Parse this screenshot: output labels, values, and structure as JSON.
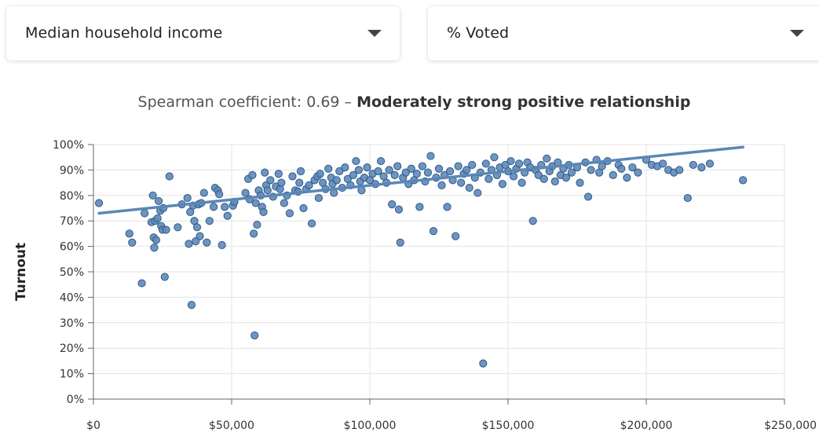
{
  "controls": {
    "x_select": {
      "value": "Median household income"
    },
    "y_select": {
      "value": "% Voted"
    }
  },
  "subtitle": {
    "prefix": "Spearman coefficient: 0.69 – ",
    "strength": "Moderately strong positive relationship"
  },
  "colors": {
    "point_fill": "#5f8ab8",
    "point_stroke": "#2c5a8c",
    "trend_line": "#5a87b5",
    "grid": "#e3e3e3",
    "axis": "#666666"
  },
  "chart_data": {
    "type": "scatter",
    "title": "Spearman coefficient: 0.69 – Moderately strong positive relationship",
    "xlabel": "Median household income",
    "ylabel": "Turnout",
    "xlim": [
      0,
      250000
    ],
    "ylim": [
      0,
      100
    ],
    "x_ticks": [
      "$0",
      "$50,000",
      "$100,000",
      "$150,000",
      "$200,000",
      "$250,000"
    ],
    "y_ticks": [
      "0%",
      "10%",
      "20%",
      "30%",
      "40%",
      "50%",
      "60%",
      "70%",
      "80%",
      "90%",
      "100%"
    ],
    "grid": true,
    "trend_line": {
      "x": [
        2000,
        235000
      ],
      "y": [
        73,
        99
      ]
    },
    "points": [
      [
        2000,
        77
      ],
      [
        13000,
        65
      ],
      [
        14000,
        61.5
      ],
      [
        17500,
        45.5
      ],
      [
        18500,
        73
      ],
      [
        21000,
        69.5
      ],
      [
        21500,
        80
      ],
      [
        21800,
        63.5
      ],
      [
        22000,
        59.5
      ],
      [
        22300,
        70
      ],
      [
        22700,
        62.5
      ],
      [
        23200,
        71
      ],
      [
        23600,
        77.8
      ],
      [
        24200,
        74
      ],
      [
        24500,
        68
      ],
      [
        25000,
        66.5
      ],
      [
        25300,
        75
      ],
      [
        25800,
        48
      ],
      [
        26300,
        66.5
      ],
      [
        27500,
        87.5
      ],
      [
        30500,
        67.5
      ],
      [
        32000,
        76.5
      ],
      [
        34000,
        79
      ],
      [
        34500,
        61
      ],
      [
        35000,
        73.5
      ],
      [
        35500,
        37
      ],
      [
        36000,
        76
      ],
      [
        36500,
        70
      ],
      [
        37000,
        62
      ],
      [
        37500,
        67.5
      ],
      [
        38000,
        76.5
      ],
      [
        38500,
        64
      ],
      [
        39000,
        77
      ],
      [
        40000,
        81
      ],
      [
        41000,
        61.5
      ],
      [
        42000,
        70
      ],
      [
        43500,
        75.5
      ],
      [
        44000,
        83
      ],
      [
        45000,
        82
      ],
      [
        45500,
        80.5
      ],
      [
        46500,
        60.5
      ],
      [
        47500,
        75.5
      ],
      [
        48500,
        72
      ],
      [
        50500,
        76
      ],
      [
        51000,
        77.5
      ],
      [
        55000,
        81
      ],
      [
        56000,
        86.5
      ],
      [
        56500,
        78.5
      ],
      [
        57500,
        88
      ],
      [
        58000,
        65
      ],
      [
        58300,
        25
      ],
      [
        58700,
        77
      ],
      [
        59200,
        68.5
      ],
      [
        59800,
        82
      ],
      [
        60500,
        80
      ],
      [
        61000,
        75.5
      ],
      [
        61500,
        73.5
      ],
      [
        62000,
        89
      ],
      [
        62500,
        84
      ],
      [
        63000,
        82
      ],
      [
        64000,
        86
      ],
      [
        65000,
        79.5
      ],
      [
        66000,
        83.5
      ],
      [
        67000,
        88.5
      ],
      [
        67500,
        82.5
      ],
      [
        68000,
        85
      ],
      [
        69000,
        77
      ],
      [
        70000,
        80
      ],
      [
        71000,
        73
      ],
      [
        72000,
        87.5
      ],
      [
        73000,
        82
      ],
      [
        74000,
        81.5
      ],
      [
        74500,
        85
      ],
      [
        75000,
        89.5
      ],
      [
        76000,
        75
      ],
      [
        77000,
        82.5
      ],
      [
        78000,
        84
      ],
      [
        79000,
        69
      ],
      [
        80000,
        86
      ],
      [
        81000,
        87.5
      ],
      [
        81500,
        79
      ],
      [
        82000,
        88.5
      ],
      [
        83000,
        85
      ],
      [
        84000,
        82.5
      ],
      [
        85000,
        90.5
      ],
      [
        86000,
        87
      ],
      [
        86500,
        84.5
      ],
      [
        87000,
        81
      ],
      [
        88000,
        86
      ],
      [
        89000,
        89.5
      ],
      [
        90000,
        83
      ],
      [
        91000,
        91
      ],
      [
        92000,
        86.5
      ],
      [
        93000,
        84
      ],
      [
        94000,
        88
      ],
      [
        95000,
        93.5
      ],
      [
        96000,
        90
      ],
      [
        96500,
        85.5
      ],
      [
        97000,
        82
      ],
      [
        98000,
        87
      ],
      [
        99000,
        91
      ],
      [
        100000,
        86
      ],
      [
        101000,
        88.5
      ],
      [
        102000,
        84.5
      ],
      [
        103000,
        89.5
      ],
      [
        104000,
        93.5
      ],
      [
        105000,
        87.5
      ],
      [
        106000,
        85
      ],
      [
        107000,
        90
      ],
      [
        108000,
        76.5
      ],
      [
        109000,
        88
      ],
      [
        110000,
        91.5
      ],
      [
        110500,
        74.5
      ],
      [
        111000,
        61.5
      ],
      [
        112000,
        87
      ],
      [
        113000,
        89
      ],
      [
        114000,
        84.5
      ],
      [
        115000,
        90.5
      ],
      [
        116000,
        86
      ],
      [
        117000,
        88.5
      ],
      [
        118000,
        75.5
      ],
      [
        119000,
        91.5
      ],
      [
        120000,
        85.5
      ],
      [
        121000,
        89
      ],
      [
        122000,
        95.5
      ],
      [
        123000,
        66
      ],
      [
        124000,
        87
      ],
      [
        125000,
        90.5
      ],
      [
        126000,
        84
      ],
      [
        127000,
        88
      ],
      [
        128000,
        75.5
      ],
      [
        129000,
        89.5
      ],
      [
        130000,
        86
      ],
      [
        131000,
        64
      ],
      [
        132000,
        91.5
      ],
      [
        133000,
        85
      ],
      [
        134000,
        88.5
      ],
      [
        135000,
        90
      ],
      [
        136000,
        83
      ],
      [
        137000,
        92
      ],
      [
        138000,
        87
      ],
      [
        139000,
        81
      ],
      [
        140000,
        89
      ],
      [
        141000,
        14
      ],
      [
        142000,
        92.5
      ],
      [
        143000,
        86.5
      ],
      [
        144000,
        90
      ],
      [
        145000,
        95
      ],
      [
        146000,
        88
      ],
      [
        147000,
        91
      ],
      [
        148000,
        84.5
      ],
      [
        149000,
        92
      ],
      [
        150000,
        89.5
      ],
      [
        151000,
        93.5
      ],
      [
        152000,
        87.5
      ],
      [
        153000,
        90.5
      ],
      [
        154000,
        92.5
      ],
      [
        155000,
        85
      ],
      [
        156000,
        89
      ],
      [
        157000,
        93
      ],
      [
        158000,
        91
      ],
      [
        159000,
        70
      ],
      [
        160000,
        90
      ],
      [
        161000,
        88
      ],
      [
        162000,
        92
      ],
      [
        163000,
        86.5
      ],
      [
        164000,
        94.5
      ],
      [
        165000,
        89.5
      ],
      [
        166000,
        91.5
      ],
      [
        167000,
        85.5
      ],
      [
        168000,
        93
      ],
      [
        169000,
        88
      ],
      [
        170000,
        90.5
      ],
      [
        171000,
        87
      ],
      [
        172000,
        92
      ],
      [
        173000,
        89
      ],
      [
        175000,
        91
      ],
      [
        176000,
        85
      ],
      [
        178000,
        93
      ],
      [
        179000,
        79.5
      ],
      [
        180000,
        90
      ],
      [
        182000,
        94
      ],
      [
        183000,
        89
      ],
      [
        184000,
        91.5
      ],
      [
        186000,
        93.5
      ],
      [
        188000,
        88
      ],
      [
        190000,
        92
      ],
      [
        191000,
        90.5
      ],
      [
        193000,
        87
      ],
      [
        195000,
        91
      ],
      [
        197000,
        89
      ],
      [
        200000,
        94
      ],
      [
        202000,
        92
      ],
      [
        204000,
        91.5
      ],
      [
        206000,
        92.5
      ],
      [
        208000,
        90
      ],
      [
        210000,
        89
      ],
      [
        212000,
        90
      ],
      [
        215000,
        79
      ],
      [
        217000,
        92
      ],
      [
        220000,
        91
      ],
      [
        223000,
        92.5
      ],
      [
        235000,
        86
      ]
    ]
  }
}
